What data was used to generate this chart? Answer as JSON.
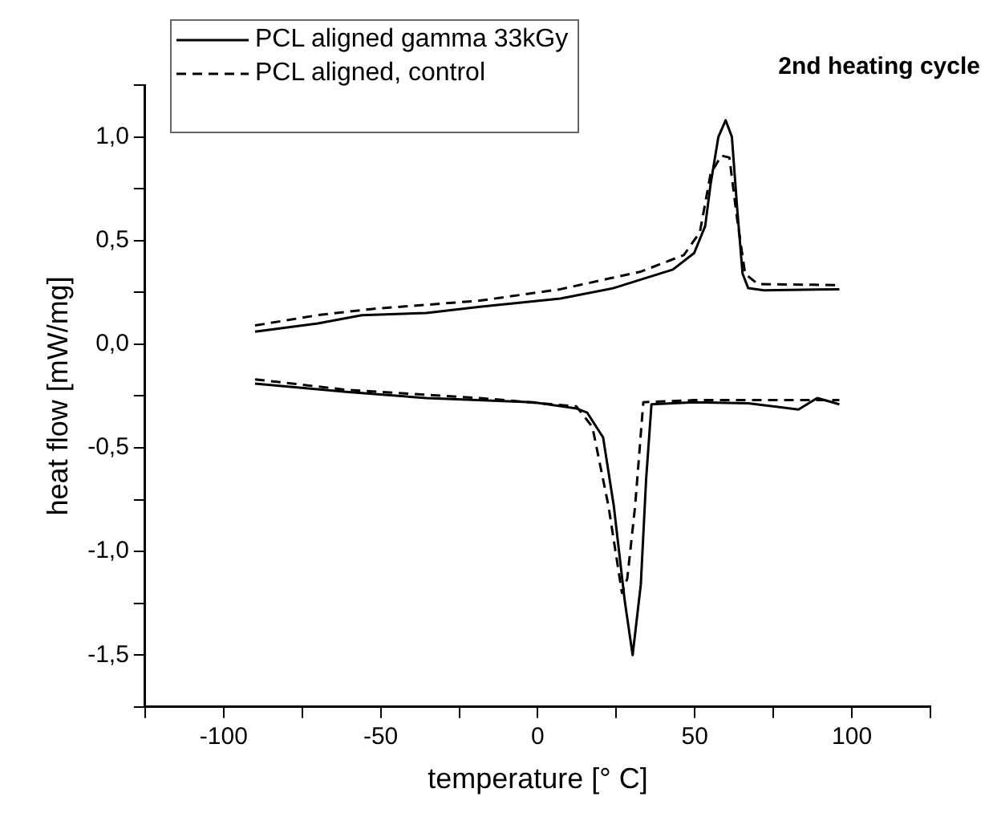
{
  "chart_data": {
    "type": "line",
    "title": "2nd heating cycle",
    "xlabel": "temperature [° C]",
    "ylabel": "heat flow [mW/mg]",
    "xlim": [
      -125,
      125
    ],
    "xticks": [
      {
        "value": -125,
        "label": null
      },
      -100,
      {
        "value": -75,
        "label": null
      },
      -50,
      {
        "value": -25,
        "label": null
      },
      0,
      {
        "value": 25,
        "label": null
      },
      50,
      {
        "value": 75,
        "label": null
      },
      100,
      {
        "value": 125,
        "label": null
      }
    ],
    "ylim": [
      -1.75,
      1.25
    ],
    "yticks": [
      {
        "value": 1.25,
        "label": null
      },
      {
        "value": 1.0,
        "label": "1,0"
      },
      {
        "value": 0.75,
        "label": null
      },
      {
        "value": 0.5,
        "label": "0,5"
      },
      {
        "value": 0.25,
        "label": null
      },
      {
        "value": 0,
        "label": "0,0"
      },
      {
        "value": -0.25,
        "label": null
      },
      {
        "value": -0.5,
        "label": "-0,5"
      },
      {
        "value": -0.75,
        "label": null
      },
      {
        "value": -1.0,
        "label": "-1,0"
      },
      {
        "value": -1.25,
        "label": null
      },
      {
        "value": -1.5,
        "label": "-1,5"
      },
      {
        "value": -1.75,
        "label": null
      }
    ],
    "grid": false,
    "legend": "top left",
    "marker": "none",
    "series": [
      {
        "name": "PCL aligned gamma 33kGy",
        "color": "#000000",
        "line_style": "solid",
        "x": [
          -90,
          -70,
          -56,
          -35.5,
          -18.4,
          7.2,
          24,
          43,
          49.8,
          53.3,
          55,
          57.5,
          59.8,
          61.8,
          63.5,
          65.2,
          67,
          72,
          96
        ],
        "values": [
          0.06,
          0.1,
          0.14,
          0.15,
          0.18,
          0.22,
          0.27,
          0.36,
          0.44,
          0.57,
          0.77,
          1.0,
          1.08,
          1.0,
          0.65,
          0.34,
          0.27,
          0.26,
          0.265
        ]
      },
      {
        "name": "PCL aligned, control",
        "color": "#000000",
        "line_style": "dashed",
        "x": [
          -90,
          -70,
          -52.6,
          -18.4,
          7.2,
          32.8,
          46.5,
          51.6,
          55,
          58.4,
          61,
          63.5,
          66,
          70,
          96
        ],
        "values": [
          0.09,
          0.14,
          0.17,
          0.21,
          0.265,
          0.35,
          0.43,
          0.54,
          0.82,
          0.91,
          0.9,
          0.6,
          0.34,
          0.29,
          0.285
        ]
      },
      {
        "color": "#000000",
        "line_style": "solid",
        "x": [
          -90,
          -61,
          -35.5,
          -1.4,
          12.3,
          15.7,
          20.8,
          24.2,
          27.7,
          30.2,
          32.8,
          34.5,
          36.2,
          49.8,
          67,
          83,
          89,
          96
        ],
        "values": [
          -0.19,
          -0.23,
          -0.26,
          -0.28,
          -0.31,
          -0.33,
          -0.45,
          -0.78,
          -1.24,
          -1.5,
          -1.16,
          -0.65,
          -0.29,
          -0.28,
          -0.285,
          -0.315,
          -0.26,
          -0.29
        ]
      },
      {
        "color": "#000000",
        "line_style": "dashed",
        "x": [
          -90,
          -61,
          -18.4,
          12.3,
          17.4,
          22.5,
          26.8,
          28.5,
          31,
          33.6,
          49.8,
          96
        ],
        "values": [
          -0.17,
          -0.22,
          -0.26,
          -0.3,
          -0.4,
          -0.78,
          -1.2,
          -1.13,
          -0.78,
          -0.28,
          -0.27,
          -0.27
        ]
      }
    ]
  }
}
